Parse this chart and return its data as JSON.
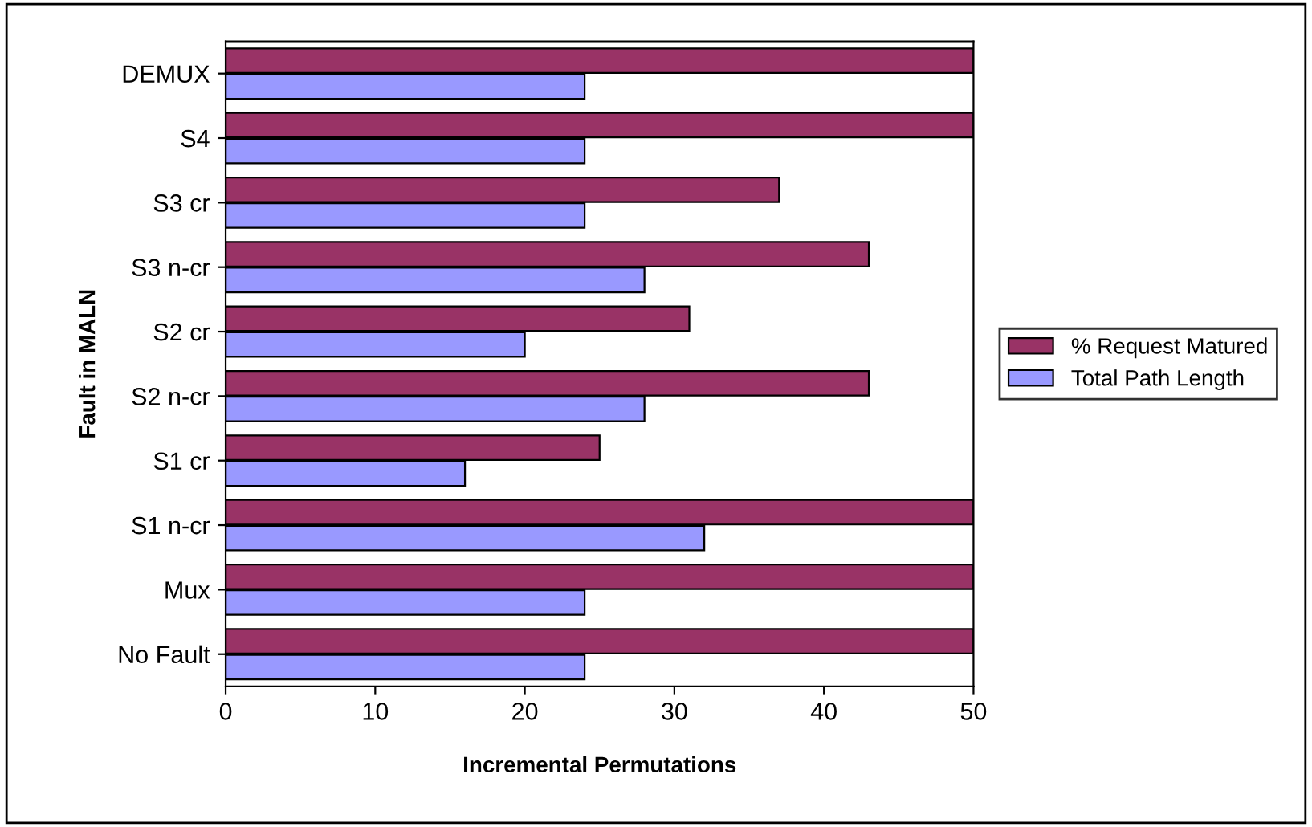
{
  "chart_data": {
    "type": "bar",
    "orientation": "horizontal",
    "xlabel": "Incremental Permutations",
    "ylabel": "Fault in MALN",
    "categories": [
      "DEMUX",
      "S4",
      "S3 cr",
      "S3 n-cr",
      "S2 cr",
      "S2 n-cr",
      "S1 cr",
      "S1 n-cr",
      "Mux",
      "No Fault"
    ],
    "series": [
      {
        "name": "% Request Matured",
        "color": "#993366",
        "values": [
          50,
          50,
          37,
          43,
          31,
          43,
          25,
          50,
          50,
          50
        ]
      },
      {
        "name": "Total Path Length",
        "color": "#9999ff",
        "values": [
          24,
          24,
          24,
          28,
          20,
          28,
          16,
          32,
          24,
          24
        ]
      }
    ],
    "xlim": [
      0,
      50
    ],
    "xticks": [
      0,
      10,
      20,
      30,
      40,
      50
    ],
    "grid": false,
    "legend": "right"
  }
}
